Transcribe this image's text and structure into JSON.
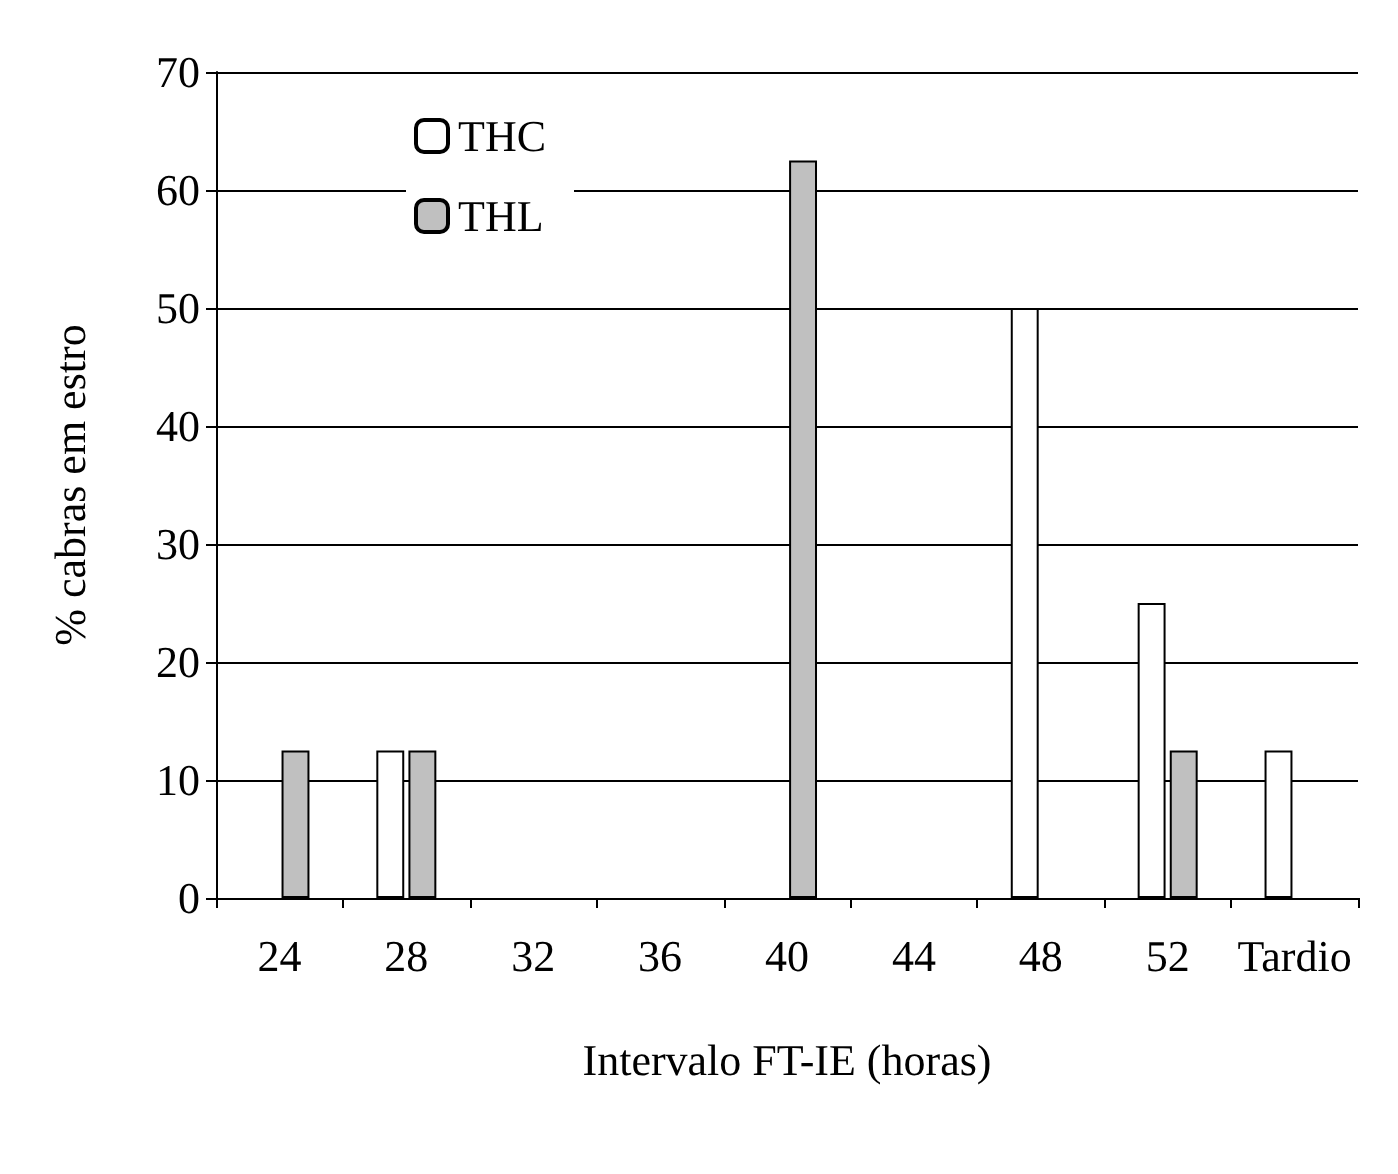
{
  "chart_data": {
    "type": "bar",
    "xlabel": "Intervalo FT-IE (horas)",
    "ylabel": "% cabras em estro",
    "categories": [
      "24",
      "28",
      "32",
      "36",
      "40",
      "44",
      "48",
      "52",
      "Tardio"
    ],
    "series": [
      {
        "name": "THC",
        "color": "#ffffff",
        "values": [
          0,
          12.5,
          0,
          0,
          0,
          0,
          50,
          25,
          12.5
        ]
      },
      {
        "name": "THL",
        "color": "#c0c0c0",
        "values": [
          12.5,
          12.5,
          0,
          0,
          62.5,
          0,
          0,
          12.5,
          0
        ]
      }
    ],
    "ylim": [
      0,
      70
    ],
    "yticks": [
      0,
      10,
      20,
      30,
      40,
      50,
      60,
      70
    ],
    "grid": "y",
    "legend": "top left"
  }
}
